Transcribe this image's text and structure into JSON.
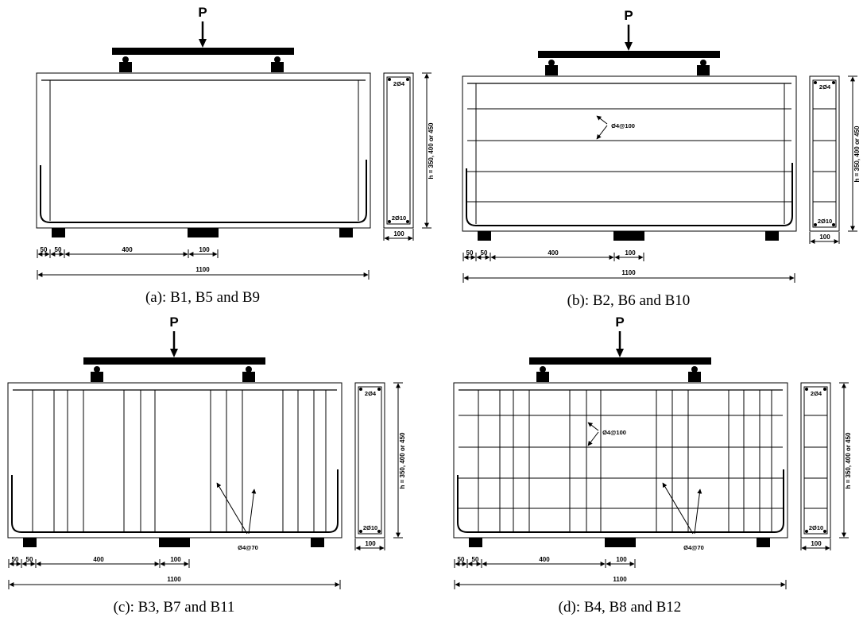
{
  "panels": [
    {
      "id": "a",
      "caption": "(a): B1, B5 and B9",
      "load": "P",
      "depth_label": "h = 350, 400 or 450",
      "top_bars": "2Ø4",
      "bottom_bars": "2Ø10",
      "section_width": "100",
      "dims": {
        "d1": "50",
        "d2": "50",
        "d3": "400",
        "d4": "100",
        "span": "1100"
      },
      "web_note": "",
      "stirrup_note": ""
    },
    {
      "id": "b",
      "caption": "(b): B2, B6 and B10",
      "load": "P",
      "depth_label": "h = 350, 400 or 450",
      "top_bars": "2Ø4",
      "bottom_bars": "2Ø10",
      "section_width": "100",
      "dims": {
        "d1": "50",
        "d2": "50",
        "d3": "400",
        "d4": "100",
        "span": "1100"
      },
      "web_note": "Ø4@100",
      "stirrup_note": ""
    },
    {
      "id": "c",
      "caption": "(c): B3, B7 and B11",
      "load": "P",
      "depth_label": "h = 350, 400 or 450",
      "top_bars": "2Ø4",
      "bottom_bars": "2Ø10",
      "section_width": "100",
      "dims": {
        "d1": "50",
        "d2": "50",
        "d3": "400",
        "d4": "100",
        "span": "1100"
      },
      "web_note": "",
      "stirrup_note": "Ø4@70"
    },
    {
      "id": "d",
      "caption": "(d): B4, B8 and B12",
      "load": "P",
      "depth_label": "h = 350, 400 or 450",
      "top_bars": "2Ø4",
      "bottom_bars": "2Ø10",
      "section_width": "100",
      "dims": {
        "d1": "50",
        "d2": "50",
        "d3": "400",
        "d4": "100",
        "span": "1100"
      },
      "web_note": "Ø4@100",
      "stirrup_note": "Ø4@70"
    }
  ]
}
